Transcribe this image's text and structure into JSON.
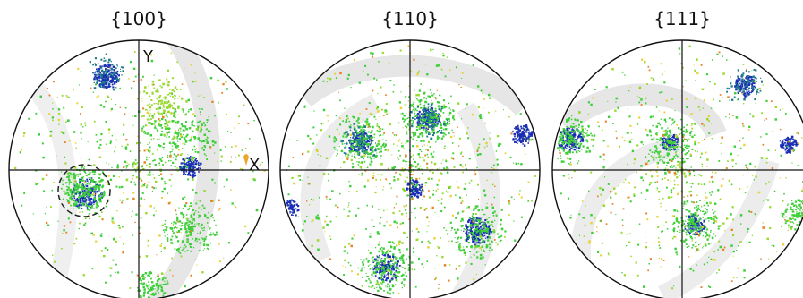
{
  "figure": {
    "pole_figures": [
      {
        "title": "{100}"
      },
      {
        "title": "{110}"
      },
      {
        "title": "{111}"
      }
    ],
    "axes": {
      "y_label": "Y",
      "x_label": "X"
    }
  },
  "colors": {
    "background": "#ffffff",
    "arc_band": "#e6e6e6",
    "circle_stroke": "#111111",
    "blue": "#1a2fb5",
    "teal": "#1f7a8a",
    "green": "#3fcf3a",
    "lime": "#9ad92d",
    "yellow": "#e8d33a",
    "orange": "#e8822a"
  }
}
